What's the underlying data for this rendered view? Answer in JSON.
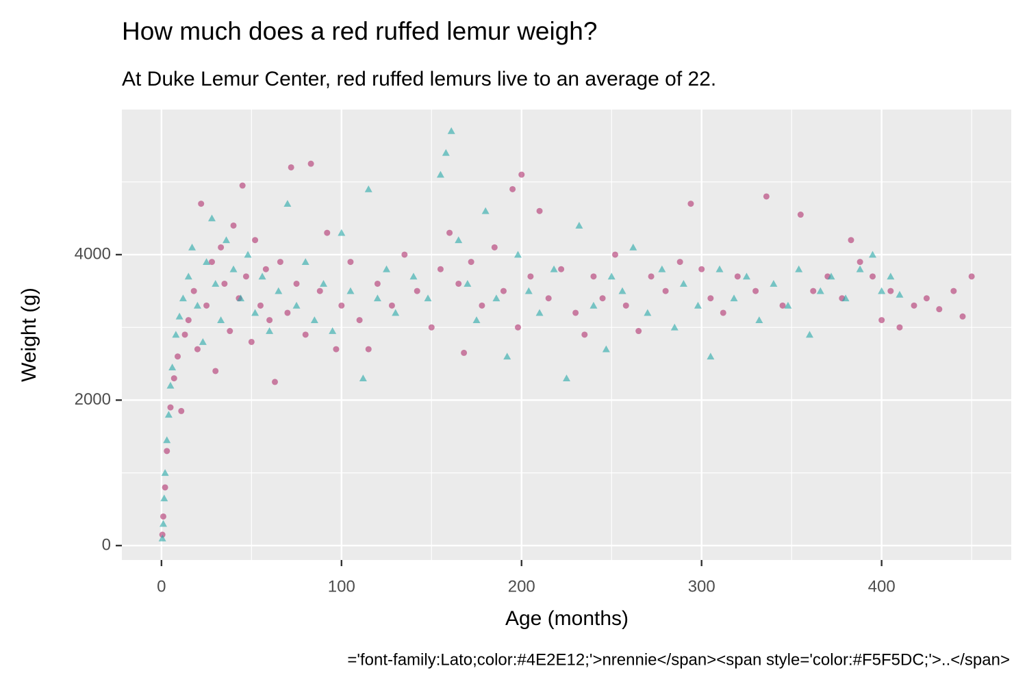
{
  "chart_data": {
    "type": "scatter",
    "title": "How much does a red ruffed lemur weigh?",
    "subtitle": "At Duke Lemur Center, red ruffed lemurs live to an average of 22.",
    "x_label": "Age (months)",
    "y_label": "Weight (g)",
    "caption": "='font-family:Lato;color:#4E2E12;'>nrennie</span><span style='color:#F5F5DC;'>..</span>",
    "xlim": [
      -22,
      472
    ],
    "ylim": [
      -198,
      5995
    ],
    "xticks": [
      0,
      100,
      200,
      300,
      400
    ],
    "yticks": [
      0,
      2000,
      4000
    ],
    "grid": true,
    "series": [
      {
        "color": "#B0306E",
        "marker": "circle",
        "x": [
          0.5,
          1,
          2,
          3,
          5,
          7,
          9,
          11,
          13,
          15,
          18,
          20,
          22,
          25,
          28,
          30,
          33,
          35,
          38,
          40,
          43,
          45,
          47,
          50,
          52,
          55,
          58,
          60,
          63,
          66,
          70,
          72,
          75,
          80,
          83,
          88,
          92,
          97,
          100,
          105,
          110,
          115,
          120,
          128,
          135,
          142,
          150,
          155,
          160,
          165,
          168,
          172,
          178,
          185,
          190,
          195,
          198,
          200,
          205,
          210,
          215,
          222,
          230,
          235,
          240,
          245,
          252,
          258,
          265,
          272,
          280,
          288,
          294,
          300,
          305,
          312,
          320,
          330,
          336,
          345,
          355,
          362,
          370,
          378,
          383,
          388,
          395,
          400,
          405,
          410,
          418,
          425,
          432,
          440,
          445,
          450
        ],
        "values": [
          150,
          400,
          800,
          1300,
          1900,
          2300,
          2600,
          1850,
          2900,
          3100,
          3500,
          2700,
          4700,
          3300,
          3900,
          2400,
          4100,
          3600,
          2950,
          4400,
          3400,
          4950,
          3700,
          2800,
          4200,
          3300,
          3800,
          3100,
          2250,
          3900,
          3200,
          5200,
          3600,
          2900,
          5250,
          3500,
          4300,
          2700,
          3300,
          3900,
          3100,
          2700,
          3600,
          3300,
          4000,
          3500,
          3000,
          3800,
          4300,
          3600,
          2650,
          3900,
          3300,
          4100,
          3500,
          4900,
          3000,
          5100,
          3700,
          4600,
          3400,
          3800,
          3200,
          2900,
          3700,
          3400,
          4000,
          3300,
          2950,
          3700,
          3500,
          3900,
          4700,
          3800,
          3400,
          3200,
          3700,
          3500,
          4800,
          3300,
          4550,
          3500,
          3700,
          3400,
          4200,
          3900,
          3700,
          3100,
          3500,
          3000,
          3300,
          3400,
          3250,
          3500,
          3150,
          3700
        ]
      },
      {
        "color": "#26A9A9",
        "marker": "triangle",
        "x": [
          0.5,
          1,
          1.5,
          2,
          3,
          4,
          5,
          6,
          8,
          10,
          12,
          15,
          17,
          20,
          23,
          25,
          28,
          30,
          33,
          36,
          40,
          44,
          48,
          52,
          56,
          60,
          65,
          70,
          75,
          80,
          85,
          90,
          95,
          100,
          105,
          112,
          115,
          120,
          125,
          130,
          140,
          148,
          155,
          158,
          161,
          165,
          170,
          175,
          180,
          186,
          192,
          198,
          204,
          210,
          218,
          225,
          232,
          240,
          247,
          250,
          256,
          262,
          270,
          278,
          285,
          290,
          298,
          305,
          310,
          318,
          325,
          332,
          340,
          348,
          354,
          360,
          366,
          372,
          380,
          388,
          395,
          400,
          405,
          410
        ],
        "values": [
          100,
          300,
          650,
          1000,
          1450,
          1800,
          2200,
          2450,
          2900,
          3150,
          3400,
          3700,
          4100,
          3300,
          2800,
          3900,
          4500,
          3600,
          3100,
          4200,
          3800,
          3400,
          4000,
          3200,
          3700,
          2950,
          3500,
          4700,
          3300,
          3900,
          3100,
          3600,
          2950,
          4300,
          3500,
          2300,
          4900,
          3400,
          3800,
          3200,
          3700,
          3400,
          5100,
          5400,
          5700,
          4200,
          3600,
          3100,
          4600,
          3400,
          2600,
          4000,
          3500,
          3200,
          3800,
          2300,
          4400,
          3300,
          2700,
          3700,
          3500,
          4100,
          3200,
          3800,
          3000,
          3600,
          3300,
          2600,
          3800,
          3400,
          3700,
          3100,
          3600,
          3300,
          3800,
          2900,
          3500,
          3700,
          3400,
          3800,
          4000,
          3500,
          3700,
          3450
        ]
      }
    ]
  }
}
